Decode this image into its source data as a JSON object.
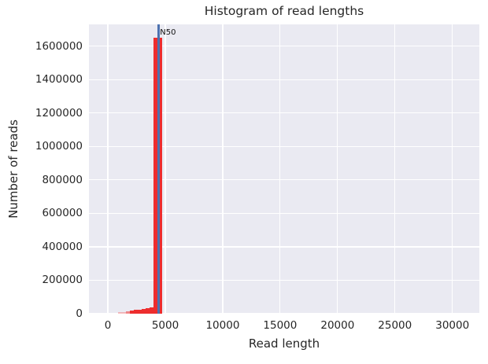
{
  "chart_data": {
    "type": "bar",
    "title": "Histogram of read lengths",
    "xlabel": "Read length",
    "ylabel": "Number of reads",
    "xlim": [
      -1650,
      32350
    ],
    "ylim": [
      0,
      1730000
    ],
    "x_ticks": [
      0,
      5000,
      10000,
      15000,
      20000,
      25000,
      30000
    ],
    "y_ticks": [
      0,
      200000,
      400000,
      600000,
      800000,
      1000000,
      1200000,
      1400000,
      1600000
    ],
    "grid": true,
    "legend": "none",
    "colors": {
      "figure_background": "#ffffff",
      "plot_background": "#eaeaf2",
      "grid": "#ffffff",
      "bar": "#ed2d2e",
      "n50_line": "#4c72b0",
      "text": "#262626"
    },
    "bars": [
      {
        "x0": 900,
        "x1": 1580,
        "count": 9000,
        "opacity": 0.3
      },
      {
        "x0": 1580,
        "x1": 1920,
        "count": 13000,
        "opacity": 0.55
      },
      {
        "x0": 1920,
        "x1": 2260,
        "count": 18000,
        "opacity": 1
      },
      {
        "x0": 2260,
        "x1": 2600,
        "count": 22000,
        "opacity": 1
      },
      {
        "x0": 2600,
        "x1": 2940,
        "count": 25000,
        "opacity": 1
      },
      {
        "x0": 2940,
        "x1": 3280,
        "count": 28000,
        "opacity": 1
      },
      {
        "x0": 3280,
        "x1": 3620,
        "count": 31000,
        "opacity": 1
      },
      {
        "x0": 3620,
        "x1": 3960,
        "count": 38000,
        "opacity": 1
      },
      {
        "x0": 3960,
        "x1": 4700,
        "count": 1650000,
        "opacity": 1
      }
    ],
    "n50_marker": {
      "value": 4400,
      "label": "N50"
    }
  }
}
